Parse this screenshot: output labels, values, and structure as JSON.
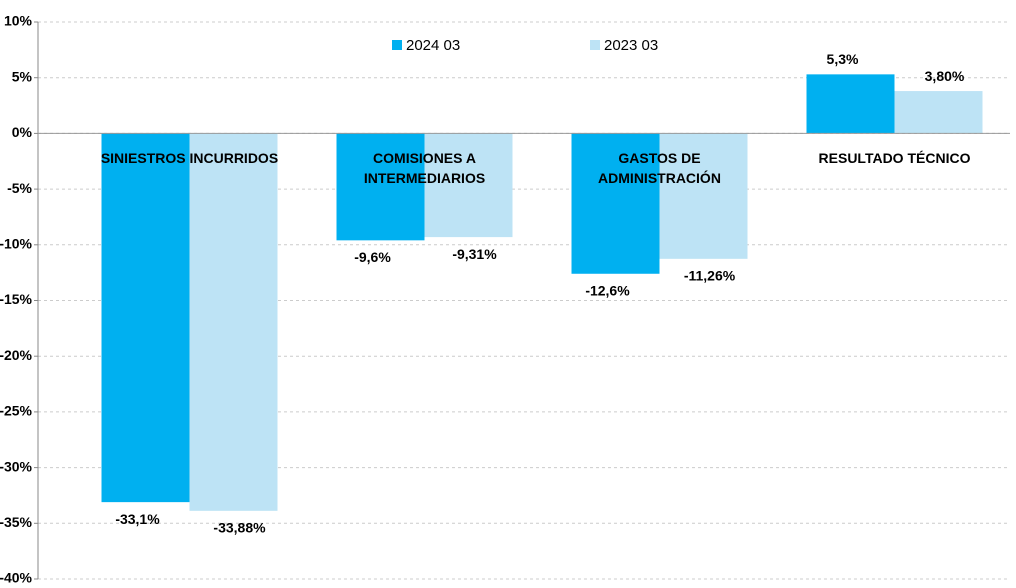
{
  "chart_data": {
    "type": "bar",
    "categories": [
      "SINIESTROS INCURRIDOS",
      "COMISIONES A INTERMEDIARIOS",
      "GASTOS DE ADMINISTRACIÓN",
      "RESULTADO TÉCNICO"
    ],
    "series": [
      {
        "name": "2024 03",
        "color": "#00b0f0",
        "values": [
          -33.1,
          -9.6,
          -12.6,
          5.3
        ],
        "value_labels": [
          "-33,1%",
          "-9,6%",
          "-12,6%",
          "5,3%"
        ]
      },
      {
        "name": "2023 03",
        "color": "#bde3f5",
        "values": [
          -33.88,
          -9.31,
          -11.26,
          3.8
        ],
        "value_labels": [
          "-33,88%",
          "-9,31%",
          "-11,26%",
          "3,80%"
        ]
      }
    ],
    "ylim": [
      -40,
      10
    ],
    "yticks": [
      {
        "value": -40,
        "label": "-40%"
      },
      {
        "value": -35,
        "label": "-35%"
      },
      {
        "value": -30,
        "label": "-30%"
      },
      {
        "value": -25,
        "label": "-25%"
      },
      {
        "value": -20,
        "label": "-20%"
      },
      {
        "value": -15,
        "label": "-15%"
      },
      {
        "value": -10,
        "label": "-10%"
      },
      {
        "value": -5,
        "label": "-5%"
      },
      {
        "value": 0,
        "label": "0%"
      },
      {
        "value": 5,
        "label": "5%"
      },
      {
        "value": 10,
        "label": "10%"
      }
    ],
    "grid": true,
    "legend": "top"
  }
}
